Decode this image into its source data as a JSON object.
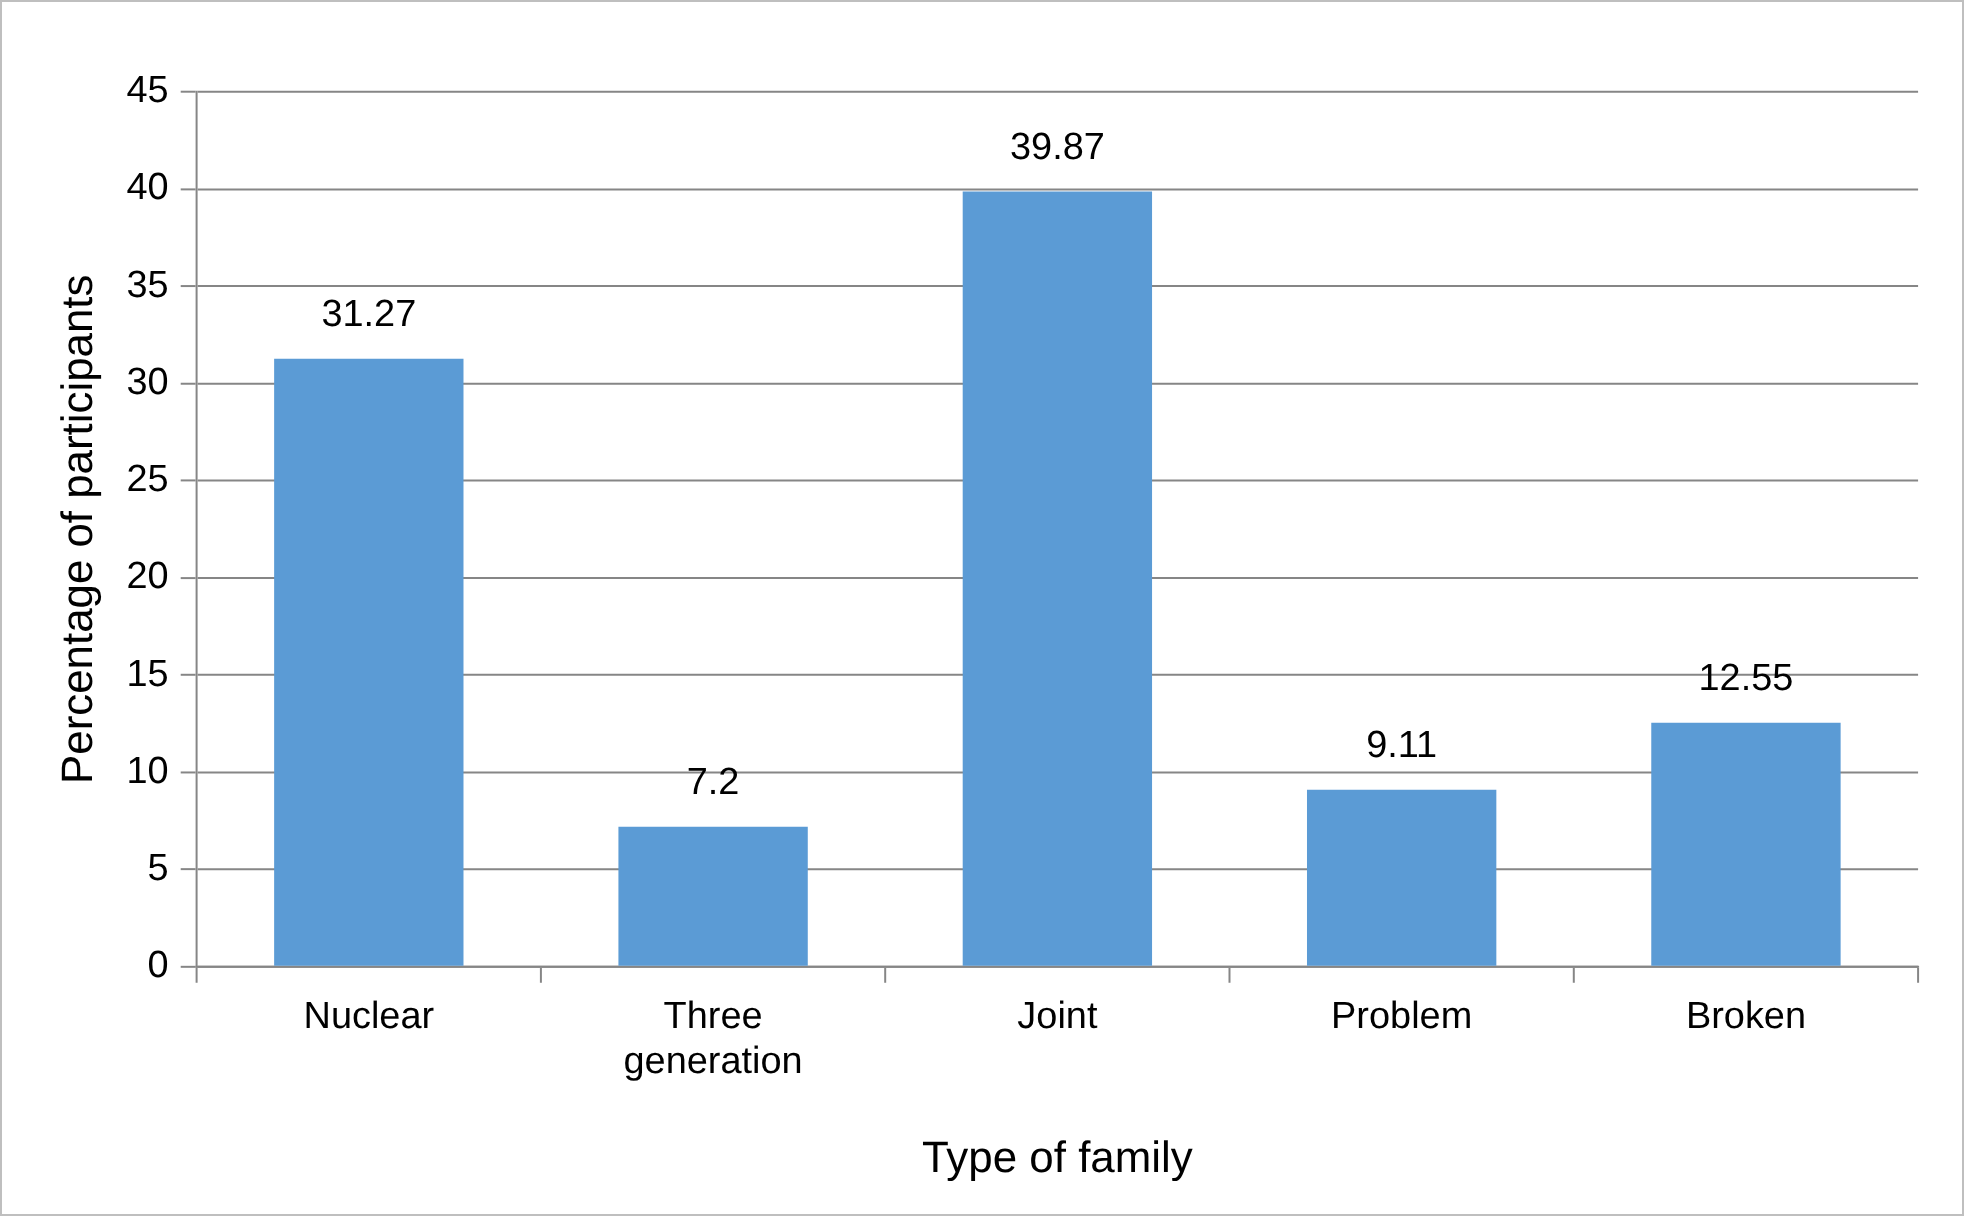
{
  "chart_data": {
    "type": "bar",
    "xlabel": "Type of family",
    "ylabel": "Percentage of participants",
    "categories": [
      "Nuclear",
      "Three generation",
      "Joint",
      "Problem",
      "Broken"
    ],
    "values": [
      31.27,
      7.2,
      39.87,
      9.11,
      12.55
    ],
    "color": "#5b9bd5",
    "ylim": [
      0,
      45
    ],
    "yticks": [
      0,
      5,
      10,
      15,
      20,
      25,
      30,
      35,
      40,
      45
    ],
    "grid": "y",
    "data_labels": true,
    "legend": false
  }
}
